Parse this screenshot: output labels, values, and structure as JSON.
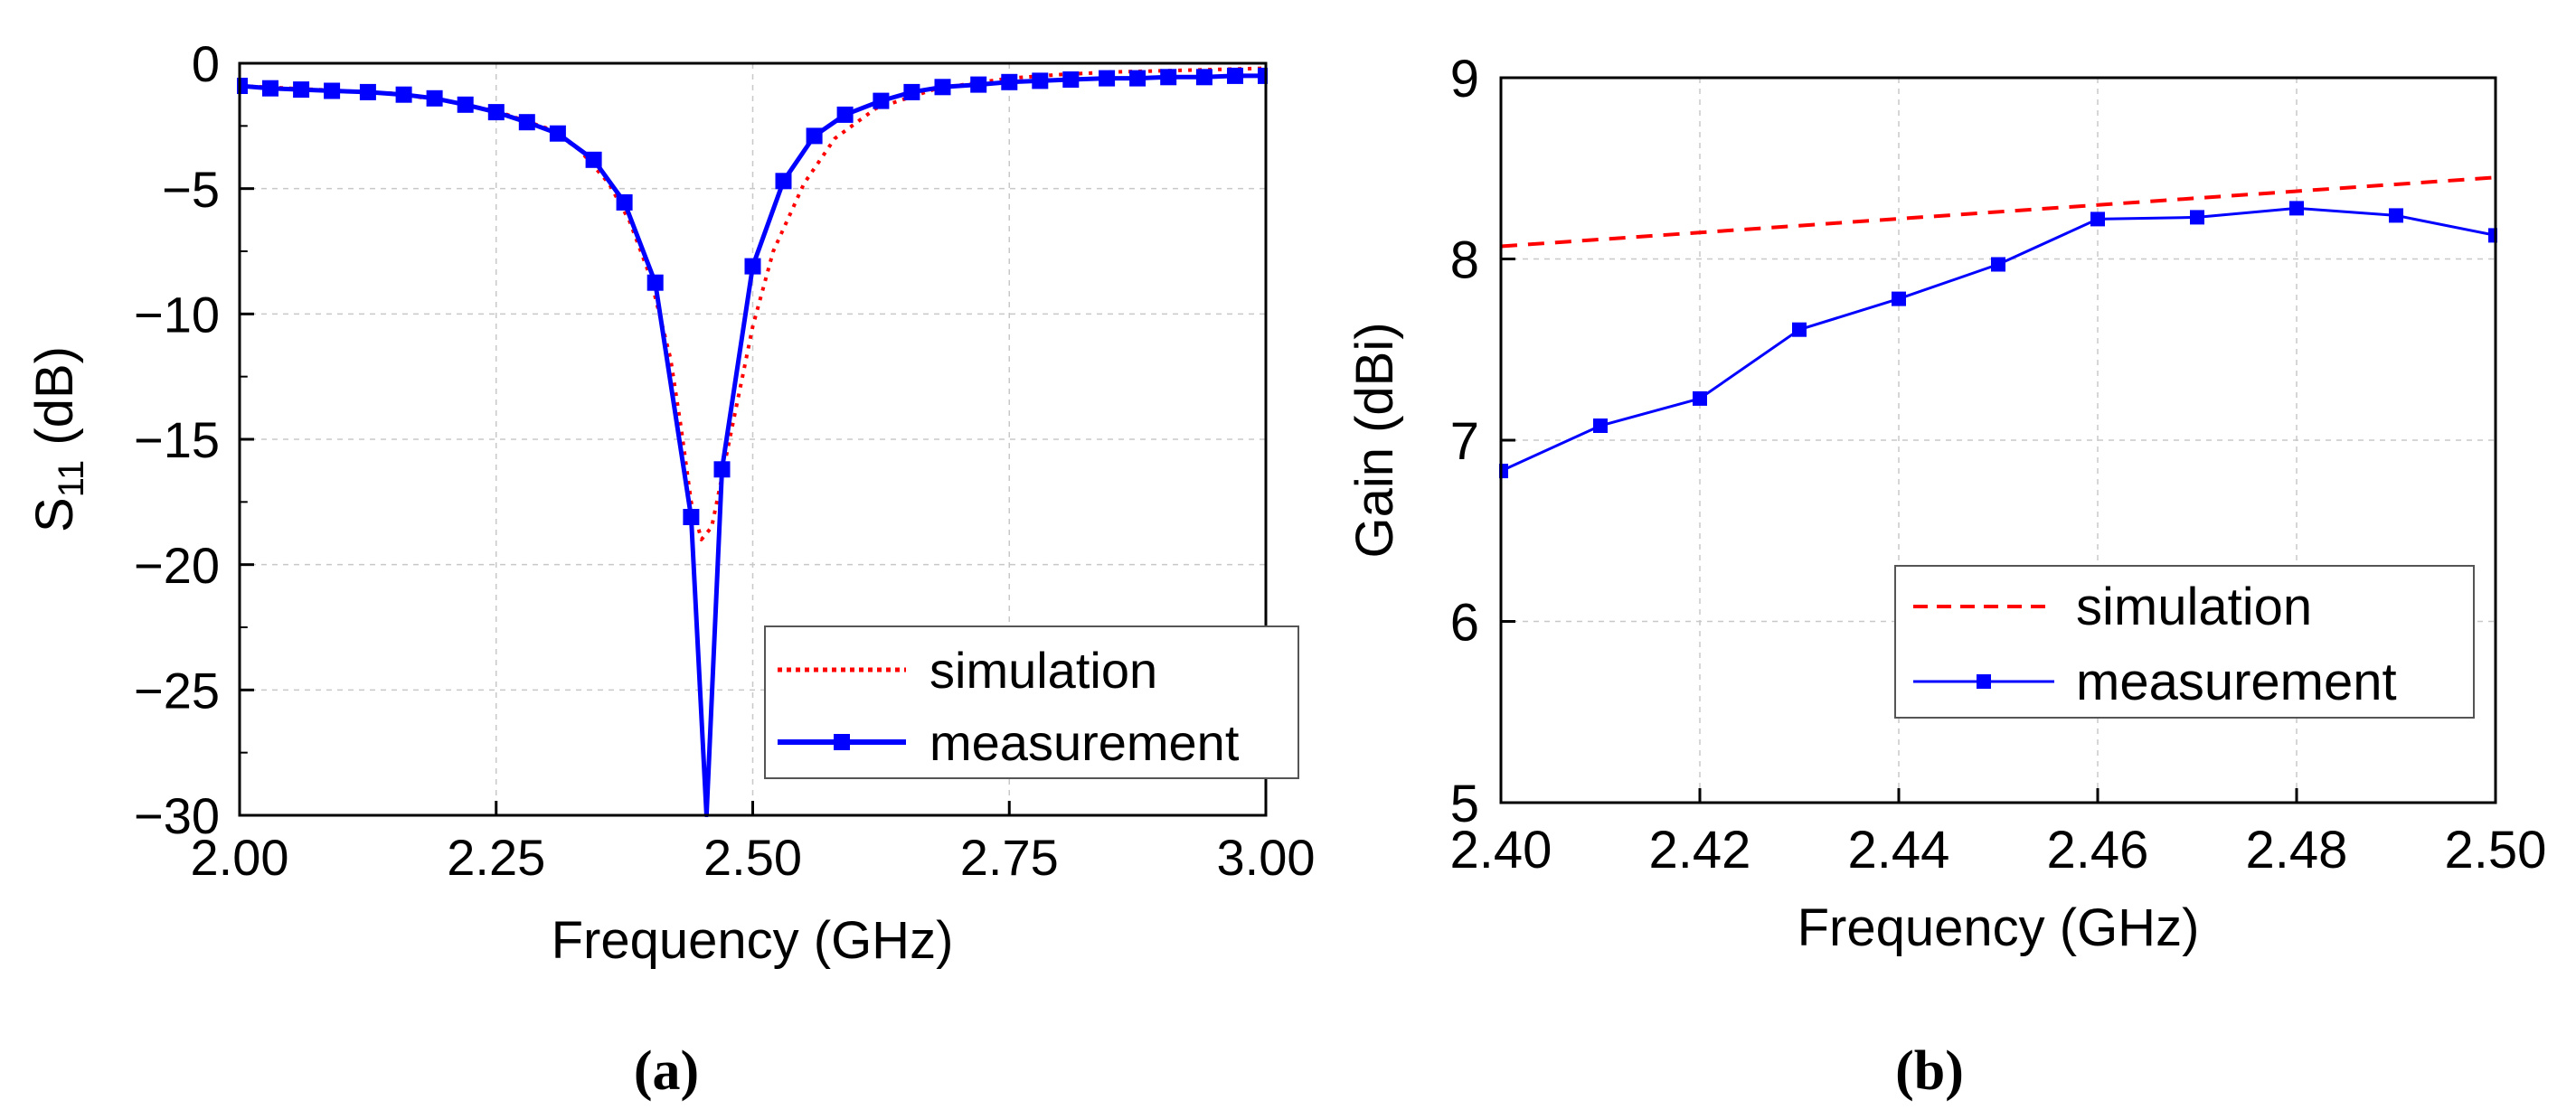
{
  "charts": [
    {
      "type": "line",
      "panel_label": "(a)",
      "xlabel": "Frequency (GHz)",
      "ylabel_main": "S",
      "ylabel_sub": "11",
      "ylabel_unit": " (dB)",
      "xlim": [
        2.0,
        3.0
      ],
      "ylim": [
        -30,
        0
      ],
      "xticks": [
        2.0,
        2.25,
        2.5,
        2.75,
        3.0
      ],
      "xtick_labels": [
        "2.00",
        "2.25",
        "2.50",
        "2.75",
        "3.00"
      ],
      "yticks": [
        0,
        -5,
        -10,
        -15,
        -20,
        -25,
        -30
      ],
      "ytick_labels": [
        "0",
        "−5",
        "−10",
        "−15",
        "−20",
        "−25",
        "−30"
      ],
      "grid": true,
      "legend_position": "bottom-right",
      "series": [
        {
          "name": "simulation",
          "color": "#ff0000",
          "style": "dotted",
          "markers": false,
          "x": [
            2.0,
            2.05,
            2.1,
            2.15,
            2.2,
            2.25,
            2.3,
            2.33,
            2.36,
            2.38,
            2.4,
            2.42,
            2.43,
            2.44,
            2.45,
            2.46,
            2.47,
            2.48,
            2.49,
            2.5,
            2.52,
            2.55,
            2.58,
            2.62,
            2.68,
            2.75,
            2.8,
            2.85,
            2.9,
            2.95,
            3.0
          ],
          "y": [
            -0.9,
            -1.0,
            -1.1,
            -1.2,
            -1.5,
            -1.9,
            -2.6,
            -3.4,
            -4.8,
            -6.3,
            -8.5,
            -11.8,
            -14.5,
            -17.5,
            -19.0,
            -18.5,
            -16.5,
            -14.5,
            -12.5,
            -10.5,
            -7.5,
            -4.8,
            -3.0,
            -1.8,
            -1.0,
            -0.6,
            -0.45,
            -0.35,
            -0.3,
            -0.25,
            -0.2
          ]
        },
        {
          "name": "measurement",
          "color": "#0000ff",
          "style": "solid",
          "markers": true,
          "x": [
            2.0,
            2.03,
            2.06,
            2.09,
            2.125,
            2.16,
            2.19,
            2.22,
            2.25,
            2.28,
            2.31,
            2.345,
            2.375,
            2.405,
            2.44,
            2.455,
            2.47,
            2.5,
            2.53,
            2.56,
            2.59,
            2.625,
            2.655,
            2.685,
            2.72,
            2.75,
            2.78,
            2.81,
            2.845,
            2.875,
            2.905,
            2.94,
            2.97,
            3.0
          ],
          "y": [
            -0.9,
            -1.0,
            -1.05,
            -1.1,
            -1.15,
            -1.25,
            -1.4,
            -1.65,
            -1.95,
            -2.35,
            -2.8,
            -3.85,
            -5.55,
            -8.75,
            -18.1,
            -30.0,
            -16.2,
            -8.1,
            -4.7,
            -2.9,
            -2.05,
            -1.5,
            -1.15,
            -0.95,
            -0.85,
            -0.75,
            -0.7,
            -0.65,
            -0.6,
            -0.6,
            -0.55,
            -0.55,
            -0.5,
            -0.5
          ],
          "marker_x": [
            2.0,
            2.03,
            2.06,
            2.09,
            2.125,
            2.16,
            2.19,
            2.22,
            2.25,
            2.28,
            2.31,
            2.345,
            2.375,
            2.405,
            2.44,
            2.47,
            2.5,
            2.53,
            2.56,
            2.59,
            2.625,
            2.655,
            2.685,
            2.72,
            2.75,
            2.78,
            2.81,
            2.845,
            2.875,
            2.905,
            2.94,
            2.97,
            3.0
          ],
          "marker_y": [
            -0.9,
            -1.0,
            -1.05,
            -1.1,
            -1.15,
            -1.25,
            -1.4,
            -1.65,
            -1.95,
            -2.35,
            -2.8,
            -3.85,
            -5.55,
            -8.75,
            -18.1,
            -16.2,
            -8.1,
            -4.7,
            -2.9,
            -2.05,
            -1.5,
            -1.15,
            -0.95,
            -0.85,
            -0.75,
            -0.7,
            -0.65,
            -0.6,
            -0.6,
            -0.55,
            -0.55,
            -0.5,
            -0.5
          ]
        }
      ]
    },
    {
      "type": "line",
      "panel_label": "(b)",
      "xlabel": "Frequency (GHz)",
      "ylabel_main": "Gain (dBi)",
      "ylabel_sub": "",
      "ylabel_unit": "",
      "xlim": [
        2.4,
        2.5
      ],
      "ylim": [
        5,
        9
      ],
      "xticks": [
        2.4,
        2.42,
        2.44,
        2.46,
        2.48,
        2.5
      ],
      "xtick_labels": [
        "2.40",
        "2.42",
        "2.44",
        "2.46",
        "2.48",
        "2.50"
      ],
      "yticks": [
        5,
        6,
        7,
        8,
        9
      ],
      "ytick_labels": [
        "5",
        "6",
        "7",
        "8",
        "9"
      ],
      "grid": true,
      "legend_position": "middle-right",
      "series": [
        {
          "name": "simulation",
          "color": "#ff0000",
          "style": "dashed",
          "markers": false,
          "x": [
            2.4,
            2.5
          ],
          "y": [
            8.07,
            8.45
          ]
        },
        {
          "name": "measurement",
          "color": "#0000ff",
          "style": "solid",
          "markers": true,
          "x": [
            2.4,
            2.41,
            2.42,
            2.43,
            2.44,
            2.45,
            2.46,
            2.47,
            2.48,
            2.49,
            2.5
          ],
          "y": [
            6.83,
            7.08,
            7.23,
            7.61,
            7.78,
            7.97,
            8.22,
            8.23,
            8.28,
            8.24,
            8.13
          ],
          "marker_x": [
            2.4,
            2.41,
            2.42,
            2.43,
            2.44,
            2.45,
            2.46,
            2.47,
            2.48,
            2.49,
            2.5
          ],
          "marker_y": [
            6.83,
            7.08,
            7.23,
            7.61,
            7.78,
            7.97,
            8.22,
            8.23,
            8.28,
            8.24,
            8.13
          ]
        }
      ]
    }
  ]
}
